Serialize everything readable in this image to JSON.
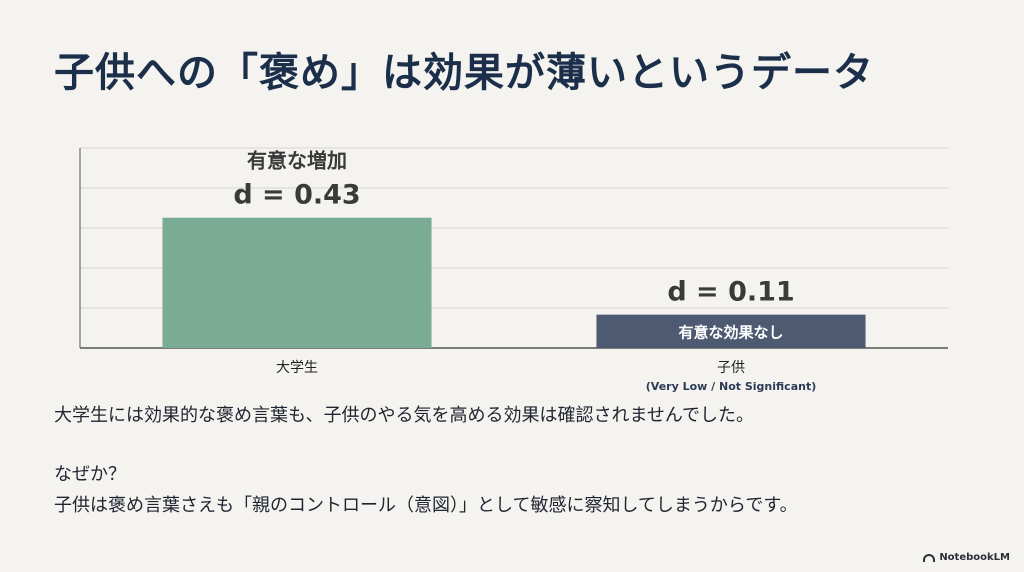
{
  "slide": {
    "title": "子供への「褒め」は効果が薄いというデータ",
    "summary": "大学生には効果的な褒め言葉も、子供のやる気を高める効果は確認されませんでした。",
    "why": "なぜか？",
    "reason": "子供は褒め言葉さえも「親のコントロール（意図）」として敏感に察知してしまうからです。",
    "brand": "NotebookLM"
  },
  "chart_data": {
    "type": "bar",
    "categories": [
      "大学生",
      "子供"
    ],
    "values": [
      0.43,
      0.11
    ],
    "sublabels": [
      "",
      "(Very Low / Not Significant)"
    ],
    "data_labels": [
      "d = 0.43",
      "d = 0.11"
    ],
    "annotations": [
      "有意な増加",
      "有意な効果なし"
    ],
    "colors": [
      "#7aab95",
      "#4d5a72"
    ],
    "grid": true,
    "ylim": [
      0,
      0.66
    ]
  }
}
